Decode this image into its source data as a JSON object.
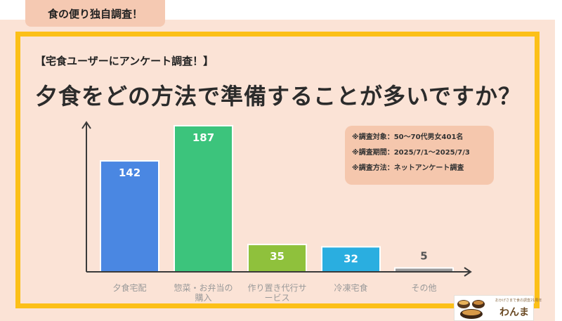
{
  "header_tab": "食の便り独自調査！",
  "subheading": "【宅食ユーザーにアンケート調査！】",
  "title": "夕食をどの方法で準備することが多いですか？",
  "survey_info": [
    "※調査対象：50～70代男女401名",
    "※調査期間：2025/7/1～2025/7/3",
    "※調査方法：ネットアンケート調査"
  ],
  "logo": {
    "tagline": "おかげさまで食の調査21周年",
    "name": "わんまる"
  },
  "chart_data": {
    "type": "bar",
    "categories": [
      [
        "夕食宅配"
      ],
      [
        "惣菜・お弁当の",
        "購入"
      ],
      [
        "作り置き代行サ",
        "ービス"
      ],
      [
        "冷凍宅食"
      ],
      [
        "その他"
      ]
    ],
    "values": [
      142,
      187,
      35,
      32,
      5
    ],
    "colors": [
      "#4a87e2",
      "#3cc47c",
      "#8fc13c",
      "#2aaee0",
      "#9a9a9a"
    ],
    "label_colors": [
      "#ffffff",
      "#ffffff",
      "#ffffff",
      "#ffffff",
      "#555555"
    ],
    "ylim": [
      0,
      187
    ],
    "title": "",
    "xlabel": "",
    "ylabel": ""
  }
}
